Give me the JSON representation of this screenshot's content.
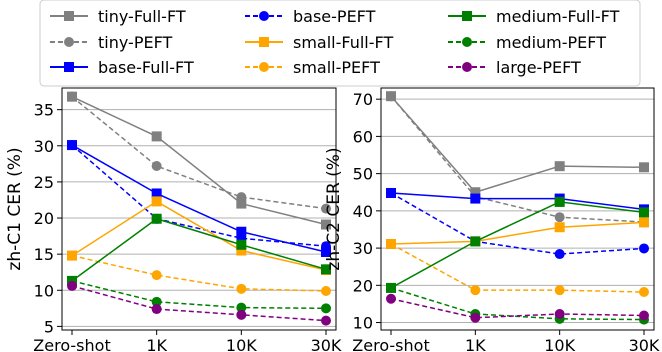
{
  "legend": {
    "placement": "top-center",
    "columns": 3,
    "entries": [
      {
        "name": "tiny-Full-FT",
        "color": "#808080",
        "marker": "square",
        "dashed": false
      },
      {
        "name": "tiny-PEFT",
        "color": "#808080",
        "marker": "circle",
        "dashed": true
      },
      {
        "name": "base-Full-FT",
        "color": "#0000ff",
        "marker": "square",
        "dashed": false
      },
      {
        "name": "base-PEFT",
        "color": "#0000ff",
        "marker": "circle",
        "dashed": true
      },
      {
        "name": "small-Full-FT",
        "color": "#ffa500",
        "marker": "square",
        "dashed": false
      },
      {
        "name": "small-PEFT",
        "color": "#ffa500",
        "marker": "circle",
        "dashed": true
      },
      {
        "name": "medium-Full-FT",
        "color": "#008000",
        "marker": "square",
        "dashed": false
      },
      {
        "name": "medium-PEFT",
        "color": "#008000",
        "marker": "circle",
        "dashed": true
      },
      {
        "name": "large-PEFT",
        "color": "#800080",
        "marker": "circle",
        "dashed": true
      }
    ]
  },
  "chart_data": [
    {
      "type": "line",
      "title": "",
      "xlabel": "",
      "ylabel": "zh-C1 CER (%)",
      "categories": [
        "Zero-shot",
        "1K",
        "10K",
        "30K"
      ],
      "ylim": [
        4.5,
        38
      ],
      "yticks": [
        5,
        10,
        15,
        20,
        25,
        30,
        35
      ],
      "grid": "horizontal",
      "series": [
        {
          "name": "tiny-Full-FT",
          "values": [
            36.8,
            31.3,
            22.0,
            19.1
          ]
        },
        {
          "name": "tiny-PEFT",
          "values": [
            36.8,
            27.2,
            22.9,
            21.3
          ]
        },
        {
          "name": "base-Full-FT",
          "values": [
            30.1,
            23.4,
            18.1,
            15.3
          ]
        },
        {
          "name": "base-PEFT",
          "values": [
            30.1,
            19.9,
            17.2,
            16.1
          ]
        },
        {
          "name": "small-Full-FT",
          "values": [
            14.8,
            22.3,
            15.5,
            12.8
          ]
        },
        {
          "name": "small-PEFT",
          "values": [
            14.8,
            12.1,
            10.2,
            9.9
          ]
        },
        {
          "name": "medium-Full-FT",
          "values": [
            11.3,
            19.9,
            16.3,
            12.9
          ]
        },
        {
          "name": "medium-PEFT",
          "values": [
            11.3,
            8.4,
            7.6,
            7.5
          ]
        },
        {
          "name": "large-PEFT",
          "values": [
            10.6,
            7.4,
            6.6,
            5.8
          ]
        }
      ]
    },
    {
      "type": "line",
      "title": "",
      "xlabel": "",
      "ylabel": "zh-C2 CER (%)",
      "categories": [
        "Zero-shot",
        "1K",
        "10K",
        "30K"
      ],
      "ylim": [
        8,
        73
      ],
      "yticks": [
        10,
        20,
        30,
        40,
        50,
        60,
        70
      ],
      "grid": "horizontal",
      "series": [
        {
          "name": "tiny-Full-FT",
          "values": [
            70.8,
            45.0,
            52.0,
            51.7
          ]
        },
        {
          "name": "tiny-PEFT",
          "values": [
            70.8,
            43.8,
            38.3,
            37.0
          ]
        },
        {
          "name": "base-Full-FT",
          "values": [
            44.8,
            43.3,
            43.3,
            40.4
          ]
        },
        {
          "name": "base-PEFT",
          "values": [
            44.8,
            31.8,
            28.4,
            29.9
          ]
        },
        {
          "name": "small-Full-FT",
          "values": [
            31.1,
            31.8,
            35.6,
            36.9
          ]
        },
        {
          "name": "small-PEFT",
          "values": [
            31.1,
            18.7,
            18.7,
            18.2
          ]
        },
        {
          "name": "medium-Full-FT",
          "values": [
            19.3,
            31.8,
            42.4,
            39.6
          ]
        },
        {
          "name": "medium-PEFT",
          "values": [
            19.3,
            12.3,
            11.0,
            10.8
          ]
        },
        {
          "name": "large-PEFT",
          "values": [
            16.4,
            11.3,
            12.3,
            11.9
          ]
        }
      ]
    }
  ]
}
